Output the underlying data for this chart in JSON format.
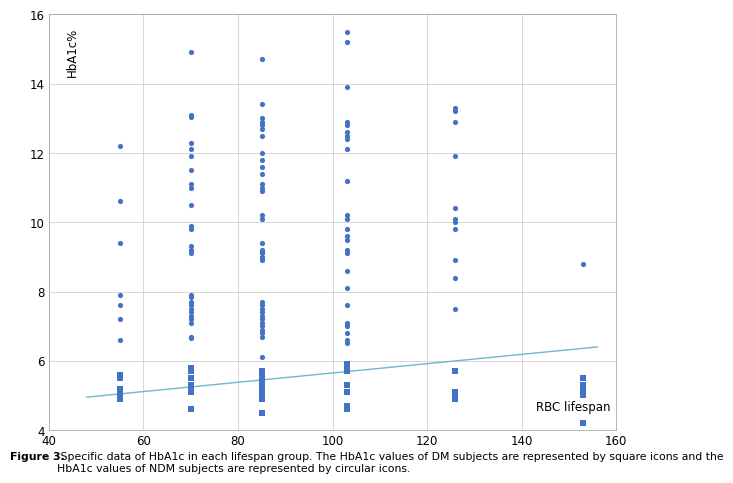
{
  "title": "",
  "xlabel": "RBC lifespan",
  "ylabel": "HbA1c%",
  "xlim": [
    40,
    160
  ],
  "ylim": [
    4,
    16
  ],
  "xticks": [
    40,
    60,
    80,
    100,
    120,
    140,
    160
  ],
  "yticks": [
    4,
    6,
    8,
    10,
    12,
    14,
    16
  ],
  "background_color": "#ffffff",
  "grid_color": "#d0d0d0",
  "marker_color": "#4472c4",
  "trendline_color": "#70b8c8",
  "caption_bold": "Figure 3.",
  "caption_rest": " Specific data of HbA1c in each lifespan group. The HbA1c values of DM subjects are represented by square icons and the\nHbA1c values of NDM subjects are represented by circular icons.",
  "circles": [
    [
      55,
      12.2
    ],
    [
      55,
      10.6
    ],
    [
      55,
      9.4
    ],
    [
      55,
      7.9
    ],
    [
      55,
      7.6
    ],
    [
      55,
      7.2
    ],
    [
      55,
      6.6
    ],
    [
      70,
      14.9
    ],
    [
      70,
      13.1
    ],
    [
      70,
      13.05
    ],
    [
      70,
      12.3
    ],
    [
      70,
      12.1
    ],
    [
      70,
      11.9
    ],
    [
      70,
      11.5
    ],
    [
      70,
      11.1
    ],
    [
      70,
      11.0
    ],
    [
      70,
      10.5
    ],
    [
      70,
      9.9
    ],
    [
      70,
      9.8
    ],
    [
      70,
      9.3
    ],
    [
      70,
      9.2
    ],
    [
      70,
      9.1
    ],
    [
      70,
      7.9
    ],
    [
      70,
      7.85
    ],
    [
      70,
      7.7
    ],
    [
      70,
      7.6
    ],
    [
      70,
      7.5
    ],
    [
      70,
      7.4
    ],
    [
      70,
      7.3
    ],
    [
      70,
      7.2
    ],
    [
      70,
      7.1
    ],
    [
      70,
      6.7
    ],
    [
      70,
      6.65
    ],
    [
      85,
      14.7
    ],
    [
      85,
      13.4
    ],
    [
      85,
      13.0
    ],
    [
      85,
      12.9
    ],
    [
      85,
      12.8
    ],
    [
      85,
      12.7
    ],
    [
      85,
      12.5
    ],
    [
      85,
      12.0
    ],
    [
      85,
      11.8
    ],
    [
      85,
      11.6
    ],
    [
      85,
      11.4
    ],
    [
      85,
      11.1
    ],
    [
      85,
      11.0
    ],
    [
      85,
      10.9
    ],
    [
      85,
      10.2
    ],
    [
      85,
      10.1
    ],
    [
      85,
      9.4
    ],
    [
      85,
      9.2
    ],
    [
      85,
      9.15
    ],
    [
      85,
      9.1
    ],
    [
      85,
      9.0
    ],
    [
      85,
      8.95
    ],
    [
      85,
      8.9
    ],
    [
      85,
      7.7
    ],
    [
      85,
      7.6
    ],
    [
      85,
      7.5
    ],
    [
      85,
      7.4
    ],
    [
      85,
      7.3
    ],
    [
      85,
      7.2
    ],
    [
      85,
      7.1
    ],
    [
      85,
      7.0
    ],
    [
      85,
      6.9
    ],
    [
      85,
      6.8
    ],
    [
      85,
      6.7
    ],
    [
      85,
      6.1
    ],
    [
      103,
      15.5
    ],
    [
      103,
      15.2
    ],
    [
      103,
      13.9
    ],
    [
      103,
      12.9
    ],
    [
      103,
      12.8
    ],
    [
      103,
      12.6
    ],
    [
      103,
      12.5
    ],
    [
      103,
      12.4
    ],
    [
      103,
      12.1
    ],
    [
      103,
      11.2
    ],
    [
      103,
      10.2
    ],
    [
      103,
      10.1
    ],
    [
      103,
      9.8
    ],
    [
      103,
      9.6
    ],
    [
      103,
      9.5
    ],
    [
      103,
      9.2
    ],
    [
      103,
      9.1
    ],
    [
      103,
      8.6
    ],
    [
      103,
      8.1
    ],
    [
      103,
      7.6
    ],
    [
      103,
      7.1
    ],
    [
      103,
      7.0
    ],
    [
      103,
      6.8
    ],
    [
      103,
      6.6
    ],
    [
      103,
      6.5
    ],
    [
      126,
      13.3
    ],
    [
      126,
      13.2
    ],
    [
      126,
      12.9
    ],
    [
      126,
      11.9
    ],
    [
      126,
      10.4
    ],
    [
      126,
      10.1
    ],
    [
      126,
      10.0
    ],
    [
      126,
      9.8
    ],
    [
      126,
      8.9
    ],
    [
      126,
      8.4
    ],
    [
      126,
      7.5
    ],
    [
      153,
      8.8
    ]
  ],
  "squares": [
    [
      55,
      5.6
    ],
    [
      55,
      5.5
    ],
    [
      55,
      5.2
    ],
    [
      55,
      5.1
    ],
    [
      55,
      5.0
    ],
    [
      55,
      4.9
    ],
    [
      70,
      5.8
    ],
    [
      70,
      5.7
    ],
    [
      70,
      5.5
    ],
    [
      70,
      5.3
    ],
    [
      70,
      5.2
    ],
    [
      70,
      5.15
    ],
    [
      70,
      5.1
    ],
    [
      70,
      4.6
    ],
    [
      85,
      5.7
    ],
    [
      85,
      5.6
    ],
    [
      85,
      5.5
    ],
    [
      85,
      5.4
    ],
    [
      85,
      5.3
    ],
    [
      85,
      5.2
    ],
    [
      85,
      5.1
    ],
    [
      85,
      5.0
    ],
    [
      85,
      4.9
    ],
    [
      85,
      4.5
    ],
    [
      103,
      5.9
    ],
    [
      103,
      5.8
    ],
    [
      103,
      5.7
    ],
    [
      103,
      5.3
    ],
    [
      103,
      5.1
    ],
    [
      103,
      4.7
    ],
    [
      103,
      4.6
    ],
    [
      126,
      5.7
    ],
    [
      126,
      5.1
    ],
    [
      126,
      5.0
    ],
    [
      126,
      4.9
    ],
    [
      153,
      5.5
    ],
    [
      153,
      5.3
    ],
    [
      153,
      5.2
    ],
    [
      153,
      5.1
    ],
    [
      153,
      5.0
    ],
    [
      153,
      4.2
    ]
  ],
  "trendline_x": [
    48,
    156
  ],
  "trendline_y": [
    4.95,
    6.4
  ]
}
